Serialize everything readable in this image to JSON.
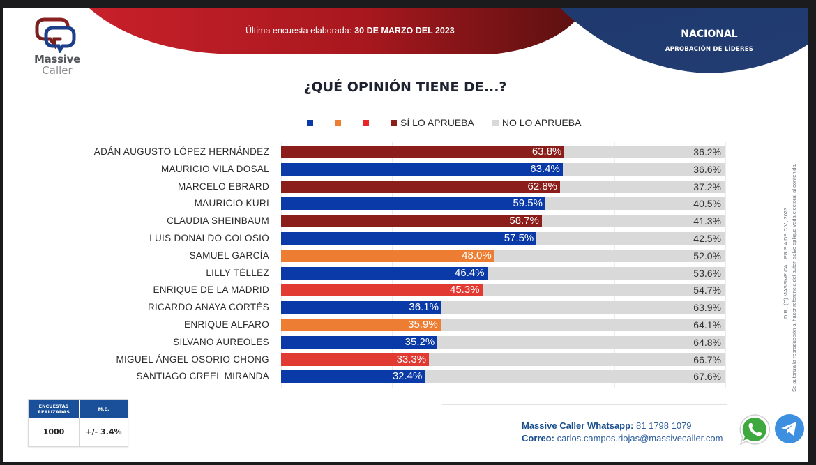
{
  "brand": {
    "name_line1": "Massive",
    "name_line2": "Caller"
  },
  "header": {
    "survey_label": "Última encuesta elaborada:",
    "survey_date": "30 DE MARZO DEL 2023",
    "region": "NACIONAL",
    "subtitle": "APROBACIÓN DE LÍDERES"
  },
  "colors": {
    "header_red": "#b3191f",
    "header_navy": "#1f3a6e",
    "morena": "#8b1e1b",
    "pan": "#0a3aa8",
    "mc": "#ee7d34",
    "pri": "#e03a32",
    "no_approve": "#d9d9d9"
  },
  "chart_data": {
    "type": "bar",
    "orientation": "horizontal-stacked",
    "title": "¿QUÉ OPINIÓN TIENE DE...?",
    "xlim": [
      0,
      100
    ],
    "grid": true,
    "legend_position": "top",
    "legend": [
      {
        "label": "",
        "color": "#0a3aa8"
      },
      {
        "label": "",
        "color": "#ee7d34"
      },
      {
        "label": "",
        "color": "#e8262a"
      },
      {
        "label": "SÍ LO APRUEBA",
        "color": "#8b1e1b"
      },
      {
        "label": "NO LO APRUEBA",
        "color": "#d9d9d9"
      }
    ],
    "categories": [
      "ADÁN AUGUSTO LÓPEZ HERNÁNDEZ",
      "MAURICIO VILA DOSAL",
      "MARCELO EBRARD",
      "MAURICIO KURI",
      "CLAUDIA SHEINBAUM",
      "LUIS DONALDO COLOSIO",
      "SAMUEL GARCÍA",
      "LILLY TÉLLEZ",
      "ENRIQUE DE LA MADRID",
      "RICARDO ANAYA CORTÉS",
      "ENRIQUE ALFARO",
      "SILVANO AUREOLES",
      "MIGUEL ÁNGEL OSORIO CHONG",
      "SANTIAGO CREEL MIRANDA"
    ],
    "bar_colors": [
      "#8b1e1b",
      "#0a3aa8",
      "#8b1e1b",
      "#0a3aa8",
      "#8b1e1b",
      "#0a3aa8",
      "#ee7d34",
      "#0a3aa8",
      "#e03a32",
      "#0a3aa8",
      "#ee7d34",
      "#0a3aa8",
      "#e03a32",
      "#0a3aa8"
    ],
    "series": [
      {
        "name": "SÍ LO APRUEBA",
        "values": [
          63.8,
          63.4,
          62.8,
          59.5,
          58.7,
          57.5,
          48.0,
          46.4,
          45.3,
          36.1,
          35.9,
          35.2,
          33.3,
          32.4
        ]
      },
      {
        "name": "NO LO APRUEBA",
        "values": [
          36.2,
          36.6,
          37.2,
          40.5,
          41.3,
          42.5,
          52.0,
          53.6,
          54.7,
          63.9,
          64.1,
          64.8,
          66.7,
          67.6
        ]
      }
    ],
    "value_labels_yes": [
      "63.8%",
      "63.4%",
      "62.8%",
      "59.5%",
      "58.7%",
      "57.5%",
      "48.0%",
      "46.4%",
      "45.3%",
      "36.1%",
      "35.9%",
      "35.2%",
      "33.3%",
      "32.4%"
    ],
    "value_labels_no": [
      "36.2%",
      "36.6%",
      "37.2%",
      "40.5%",
      "41.3%",
      "42.5%",
      "52.0%",
      "53.6%",
      "54.7%",
      "63.9%",
      "64.1%",
      "64.8%",
      "66.7%",
      "67.6%"
    ]
  },
  "stats": {
    "col1_header_line1": "ENCUESTAS",
    "col1_header_line2": "REALIZADAS",
    "col2_header": "M.E.",
    "surveys": "1000",
    "margin_error": "+/- 3.4%"
  },
  "contact": {
    "whatsapp_label": "Massive Caller Whatsapp:",
    "whatsapp_number": "81 1798 1079",
    "email_label": "Correo:",
    "email": "carlos.campos.riojas@massivecaller.com"
  },
  "copyright": {
    "line1": "D.R., (C) MASSIVE CALLER S.A DE C.V., 2023",
    "line2": "Se autoriza la reproducción al hacer referencia del autor, salvo aplique veda electoral al contenido."
  }
}
